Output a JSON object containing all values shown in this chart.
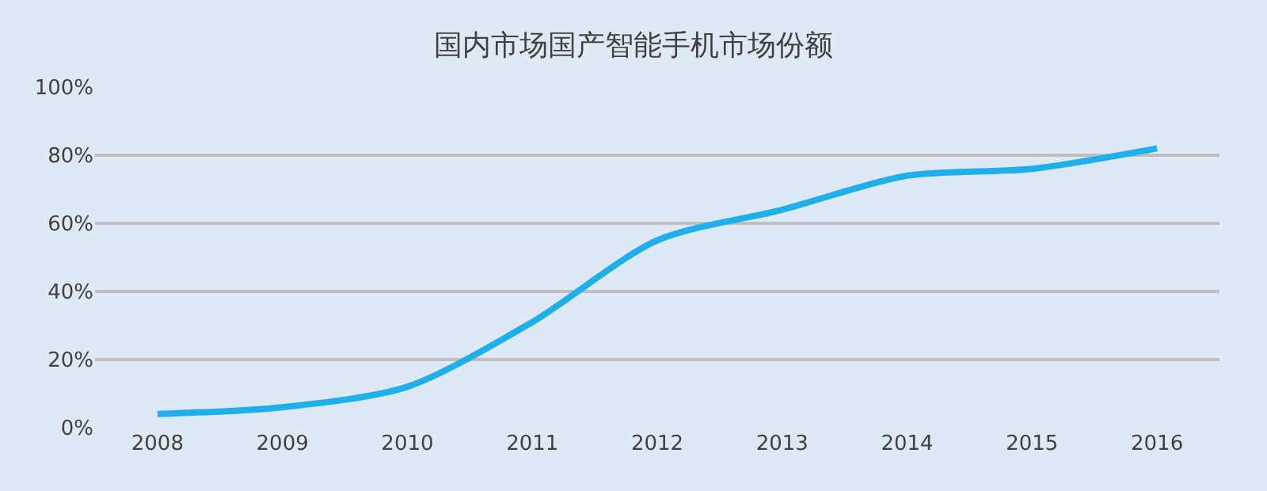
{
  "chart_data": {
    "type": "line",
    "title": "国内市场国产智能手机市场份额",
    "categories": [
      "2008",
      "2009",
      "2010",
      "2011",
      "2012",
      "2013",
      "2014",
      "2015",
      "2016"
    ],
    "series": [
      {
        "color": "#1fb0ec",
        "values": [
          4,
          6,
          12,
          31,
          55,
          64,
          74,
          76,
          82
        ]
      }
    ],
    "ylim": [
      0,
      100
    ],
    "yticks": [
      {
        "value": 0,
        "label": "0%"
      },
      {
        "value": 20,
        "label": "20%"
      },
      {
        "value": 40,
        "label": "40%"
      },
      {
        "value": 60,
        "label": "60%"
      },
      {
        "value": 80,
        "label": "80%"
      },
      {
        "value": 100,
        "label": "100%"
      }
    ],
    "grid": "y",
    "legend": false,
    "marker": "none",
    "line_style": "solid"
  }
}
